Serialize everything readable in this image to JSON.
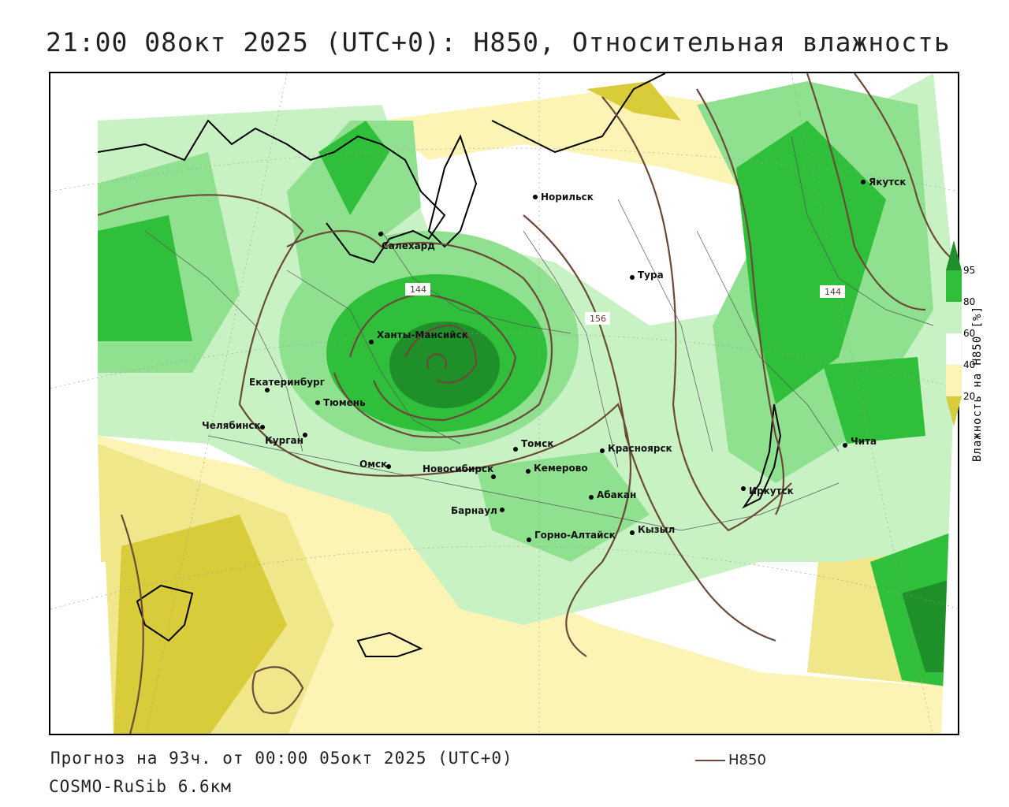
{
  "title": "21:00 08окт 2025 (UTC+0): H850, Относительная влажность",
  "footer": {
    "forecast": "Прогноз на 93ч. от 00:00 05окт 2025 (UTC+0)",
    "model": "COSMO-RuSib 6.6км",
    "legend_label": "H850"
  },
  "colorbar": {
    "label": "Влажность на H850 [%]",
    "ticks": [
      "95",
      "80",
      "60",
      "40",
      "20"
    ],
    "colors": {
      "very_wet": "#1f8f2a",
      "wet": "#2fbf3a",
      "moist": "#8fe08f",
      "light": "#c9f2c4",
      "neutral": "#ffffff",
      "dry_light": "#fbf4b4",
      "dry": "#f0e68a",
      "very_dry": "#d8cc3a"
    }
  },
  "isolines": {
    "color": "#6b4a3a",
    "labels": [
      "144",
      "156",
      "144"
    ]
  },
  "cities": [
    {
      "name": "Норильск"
    },
    {
      "name": "Якутск"
    },
    {
      "name": "Салехард"
    },
    {
      "name": "Тура"
    },
    {
      "name": "Ханты-Мансийск"
    },
    {
      "name": "Екатеринбург"
    },
    {
      "name": "Тюмень"
    },
    {
      "name": "Челябинск"
    },
    {
      "name": "Курган"
    },
    {
      "name": "Омск"
    },
    {
      "name": "Новосибирск"
    },
    {
      "name": "Томск"
    },
    {
      "name": "Кемерово"
    },
    {
      "name": "Красноярск"
    },
    {
      "name": "Абакан"
    },
    {
      "name": "Барнаул"
    },
    {
      "name": "Горно-Алтайск"
    },
    {
      "name": "Кызыл"
    },
    {
      "name": "Иркутск"
    },
    {
      "name": "Чита"
    }
  ]
}
